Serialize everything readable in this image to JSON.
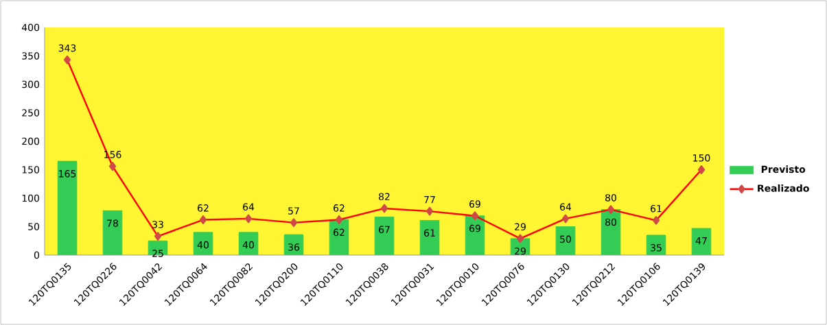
{
  "chart_data": {
    "type": "bar",
    "categories": [
      "120TQ0135",
      "120TQ0226",
      "120TQ0042",
      "120TQ0064",
      "120TQ0082",
      "120TQ0200",
      "120TQ0110",
      "120TQ0038",
      "120TQ0031",
      "120TQ0010",
      "120TQ0076",
      "120TQ0130",
      "120TQ0212",
      "120TQ0106",
      "120TQ0139"
    ],
    "series": [
      {
        "name": "Previsto",
        "color": "#33cc55",
        "values": [
          165,
          78,
          25,
          40,
          40,
          36,
          62,
          67,
          61,
          69,
          29,
          50,
          80,
          35,
          47
        ]
      },
      {
        "name": "Realizado",
        "type": "line",
        "color": "#ff0000",
        "values": [
          343,
          156,
          33,
          62,
          64,
          57,
          62,
          82,
          77,
          69,
          29,
          64,
          80,
          61,
          150
        ]
      }
    ],
    "ylim": [
      0,
      400
    ],
    "yticks": [
      0,
      50,
      100,
      150,
      200,
      250,
      300,
      350,
      400
    ],
    "data_labels": true,
    "legend": "right",
    "marker": "diamond",
    "grid": false
  }
}
